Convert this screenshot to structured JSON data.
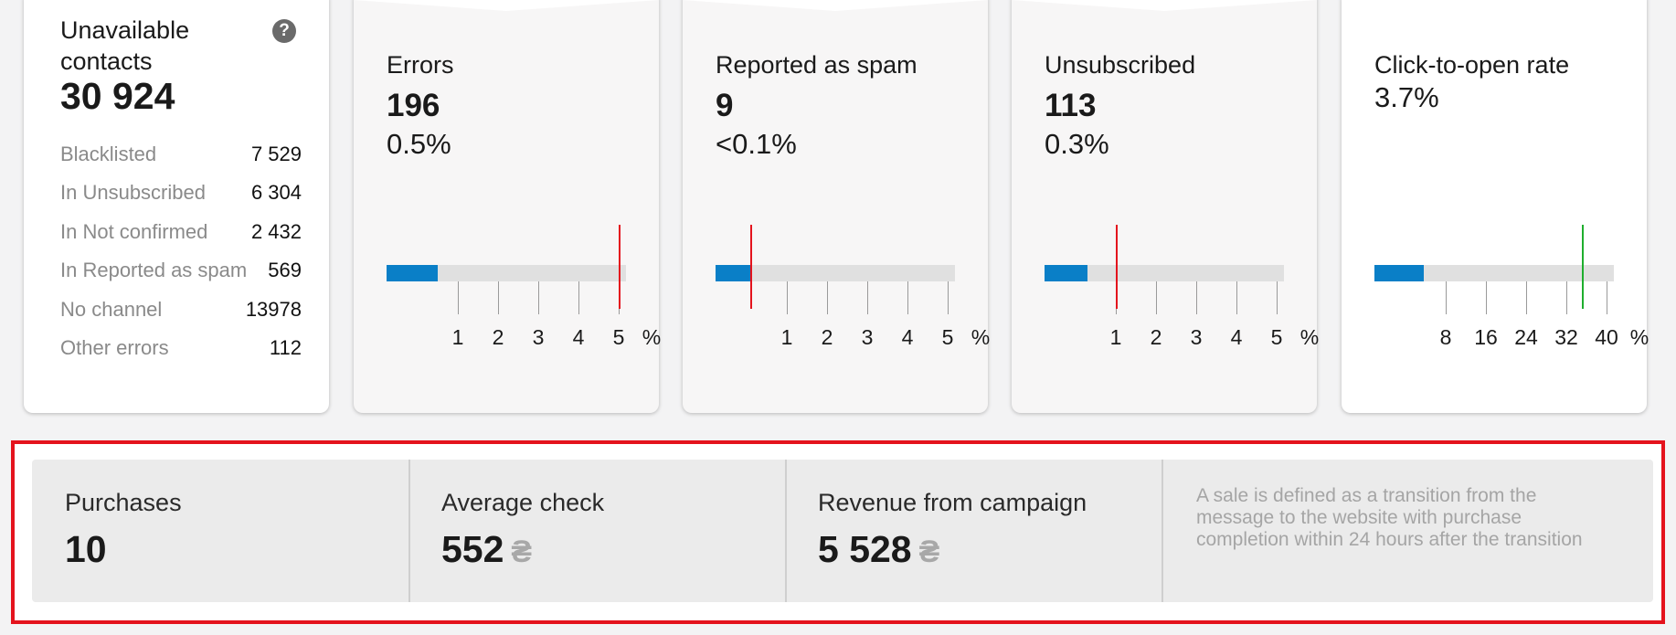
{
  "unavailable": {
    "title": "Unavailable contacts",
    "total": "30 924",
    "help_icon": "question-circle-icon",
    "rows": [
      {
        "label": "Blacklisted",
        "value": "7 529"
      },
      {
        "label": "In Unsubscribed",
        "value": "6 304"
      },
      {
        "label": "In Not confirmed",
        "value": "2 432"
      },
      {
        "label": "In Reported as spam",
        "value": "569"
      },
      {
        "label": "No channel",
        "value": "13978"
      },
      {
        "label": "Other errors",
        "value": "112"
      }
    ]
  },
  "metrics": [
    {
      "title": "Errors",
      "count": "196",
      "percent": "0.5%",
      "ticks": [
        "1",
        "2",
        "3",
        "4",
        "5"
      ],
      "unit": "%",
      "fill_fraction": 0.5,
      "threshold_pct": 5,
      "threshold_color": "#e4131d"
    },
    {
      "title": "Reported as spam",
      "count": "9",
      "percent": "<0.1%",
      "ticks": [
        "1",
        "2",
        "3",
        "4",
        "5"
      ],
      "unit": "%",
      "fill_fraction": 0.08,
      "threshold_pct": 0.1,
      "threshold_color": "#e4131d"
    },
    {
      "title": "Unsubscribed",
      "count": "113",
      "percent": "0.3%",
      "ticks": [
        "1",
        "2",
        "3",
        "4",
        "5"
      ],
      "unit": "%",
      "fill_fraction": 0.3,
      "threshold_pct": 1,
      "threshold_color": "#e4131d"
    },
    {
      "title": "Click-to-open rate",
      "count": "",
      "percent": "3.7%",
      "ticks": [
        "8",
        "16",
        "24",
        "32",
        "40"
      ],
      "unit": "%",
      "fill_fraction": 3.7,
      "threshold_pct": 35,
      "threshold_color": "#1fae2e"
    }
  ],
  "revenue": {
    "purchases_label": "Purchases",
    "purchases_value": "10",
    "avg_label": "Average check",
    "avg_value": "552",
    "rev_label": "Revenue from campaign",
    "rev_value": "5 528",
    "currency": "₴",
    "note": "A sale is defined as a transition from the message to the website with purchase completion within 24 hours after the transition"
  },
  "colors": {
    "accent": "#0a7fc7",
    "highlight_border": "#e4131d"
  }
}
